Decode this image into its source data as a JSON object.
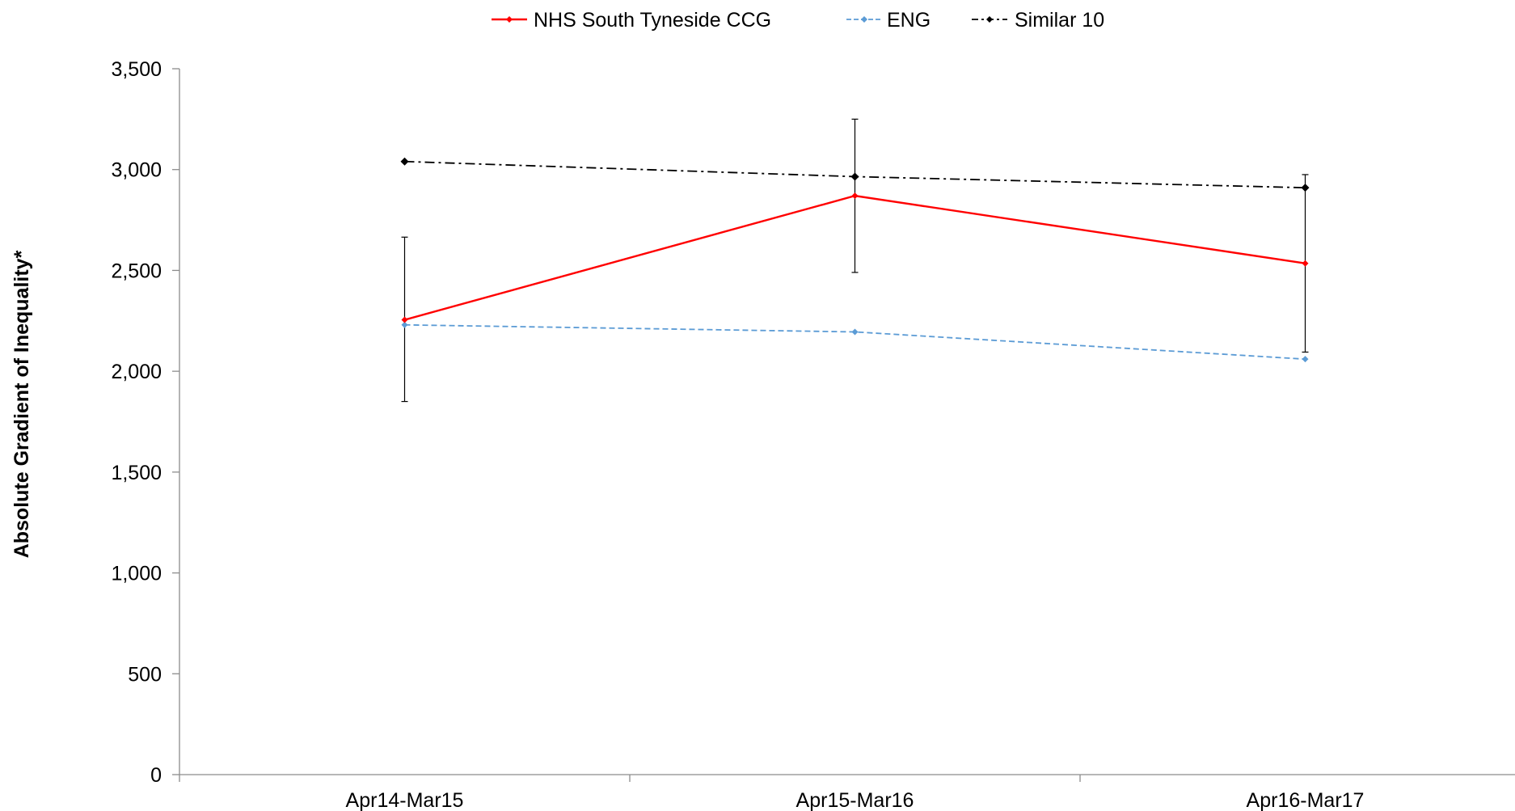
{
  "chart_data": {
    "type": "line",
    "title": "",
    "xlabel": "",
    "ylabel": "Absolute Gradient of Inequality*",
    "categories": [
      "Apr14-Mar15",
      "Apr15-Mar16",
      "Apr16-Mar17"
    ],
    "ylim": [
      0,
      3500
    ],
    "yticks": [
      0,
      500,
      1000,
      1500,
      2000,
      2500,
      3000,
      3500
    ],
    "ytick_labels": [
      "0",
      "500",
      "1,000",
      "1,500",
      "2,000",
      "2,500",
      "3,000",
      "3,500"
    ],
    "grid": false,
    "legend_position": "top-center",
    "series": [
      {
        "name": "NHS South Tyneside CCG",
        "values": [
          2255,
          2870,
          2535
        ],
        "error_low": [
          1850,
          2490,
          2095
        ],
        "error_high": [
          2665,
          3250,
          2975
        ],
        "color": "#ff0000",
        "line_style": "solid",
        "marker": "diamond"
      },
      {
        "name": "ENG",
        "values": [
          2230,
          2195,
          2060
        ],
        "color": "#5b9bd5",
        "line_style": "dashed",
        "marker": "diamond"
      },
      {
        "name": "Similar 10",
        "values": [
          3040,
          2965,
          2910
        ],
        "color": "#000000",
        "line_style": "dash-dot",
        "marker": "diamond"
      }
    ]
  }
}
